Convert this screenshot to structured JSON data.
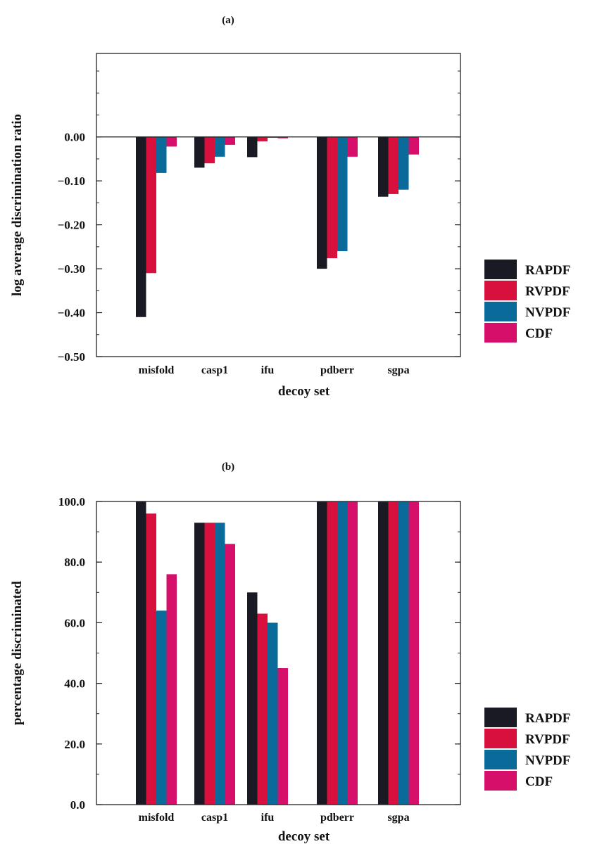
{
  "figure": {
    "panel_a_label": "(a)",
    "panel_b_label": "(b)"
  },
  "chart_data": [
    {
      "type": "bar",
      "categories": [
        "misfold",
        "casp1",
        "ifu",
        "pdberr",
        "sgpa"
      ],
      "xlabel": "decoy set",
      "ylabel": "log average discrimination ratio",
      "ylim": [
        -0.5,
        0.19
      ],
      "yticks": [
        0.0,
        -0.1,
        -0.2,
        -0.3,
        -0.4,
        -0.5
      ],
      "ytick_labels": [
        "0.00",
        "−0.10",
        "−0.20",
        "−0.30",
        "−0.40",
        "−0.50"
      ],
      "reference_line": 0.0,
      "legend_position": "right",
      "series": [
        {
          "name": "RAPDF",
          "color": "#1a1a24",
          "values": [
            -0.41,
            -0.07,
            -0.046,
            -0.3,
            -0.136
          ]
        },
        {
          "name": "RVPDF",
          "color": "#d8103e",
          "values": [
            -0.31,
            -0.06,
            -0.01,
            -0.276,
            -0.13
          ]
        },
        {
          "name": "NVPDF",
          "color": "#0a6a9a",
          "values": [
            -0.082,
            -0.045,
            -0.002,
            -0.26,
            -0.12
          ]
        },
        {
          "name": "CDF",
          "color": "#d6106a",
          "values": [
            -0.022,
            -0.018,
            -0.003,
            -0.045,
            -0.04
          ]
        }
      ]
    },
    {
      "type": "bar",
      "categories": [
        "misfold",
        "casp1",
        "ifu",
        "pdberr",
        "sgpa"
      ],
      "xlabel": "decoy set",
      "ylabel": "percentage discriminated",
      "ylim": [
        0,
        100
      ],
      "yticks": [
        0,
        20,
        40,
        60,
        80,
        100
      ],
      "ytick_labels": [
        "0.0",
        "20.0",
        "40.0",
        "60.0",
        "80.0",
        "100.0"
      ],
      "legend_position": "right",
      "series": [
        {
          "name": "RAPDF",
          "color": "#1a1a24",
          "values": [
            100,
            93,
            70,
            100,
            100
          ]
        },
        {
          "name": "RVPDF",
          "color": "#d8103e",
          "values": [
            96,
            93,
            63,
            100,
            100
          ]
        },
        {
          "name": "NVPDF",
          "color": "#0a6a9a",
          "values": [
            64,
            93,
            60,
            100,
            100
          ]
        },
        {
          "name": "CDF",
          "color": "#d6106a",
          "values": [
            76,
            86,
            45,
            100,
            100
          ]
        }
      ]
    }
  ]
}
